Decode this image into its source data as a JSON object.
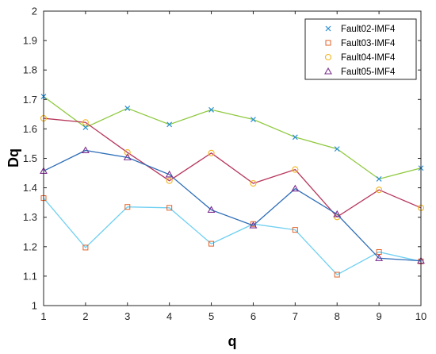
{
  "chart_data": {
    "type": "line",
    "xlabel": "q",
    "ylabel": "Dq",
    "xlim": [
      1,
      10
    ],
    "ylim": [
      1,
      2
    ],
    "x": [
      1,
      2,
      3,
      4,
      5,
      6,
      7,
      8,
      9,
      10
    ],
    "xticks": [
      "1",
      "2",
      "3",
      "4",
      "5",
      "6",
      "7",
      "8",
      "9",
      "10"
    ],
    "yticks": [
      "1",
      "1.1",
      "1.2",
      "1.3",
      "1.4",
      "1.5",
      "1.6",
      "1.7",
      "1.8",
      "1.9",
      "2"
    ],
    "grid": false,
    "legend_position": "top-right",
    "series": [
      {
        "name": "Fault02-IMF4",
        "marker": "x",
        "line_color": "#8fc93f",
        "marker_color": "#2a8fd4",
        "values": [
          1.71,
          1.605,
          1.67,
          1.615,
          1.665,
          1.632,
          1.572,
          1.532,
          1.43,
          1.467
        ]
      },
      {
        "name": "Fault03-IMF4",
        "marker": "square",
        "line_color": "#6fd0f2",
        "marker_color": "#e0622a",
        "values": [
          1.365,
          1.197,
          1.335,
          1.332,
          1.21,
          1.277,
          1.257,
          1.105,
          1.182,
          1.15
        ]
      },
      {
        "name": "Fault04-IMF4",
        "marker": "circle",
        "line_color": "#b7365c",
        "marker_color": "#f2b51f",
        "values": [
          1.636,
          1.622,
          1.52,
          1.424,
          1.518,
          1.415,
          1.462,
          1.301,
          1.393,
          1.332
        ]
      },
      {
        "name": "Fault05-IMF4",
        "marker": "triangle",
        "line_color": "#2e6db8",
        "marker_color": "#7b2f8e",
        "values": [
          1.457,
          1.527,
          1.503,
          1.445,
          1.325,
          1.272,
          1.397,
          1.31,
          1.161,
          1.152
        ]
      }
    ]
  }
}
